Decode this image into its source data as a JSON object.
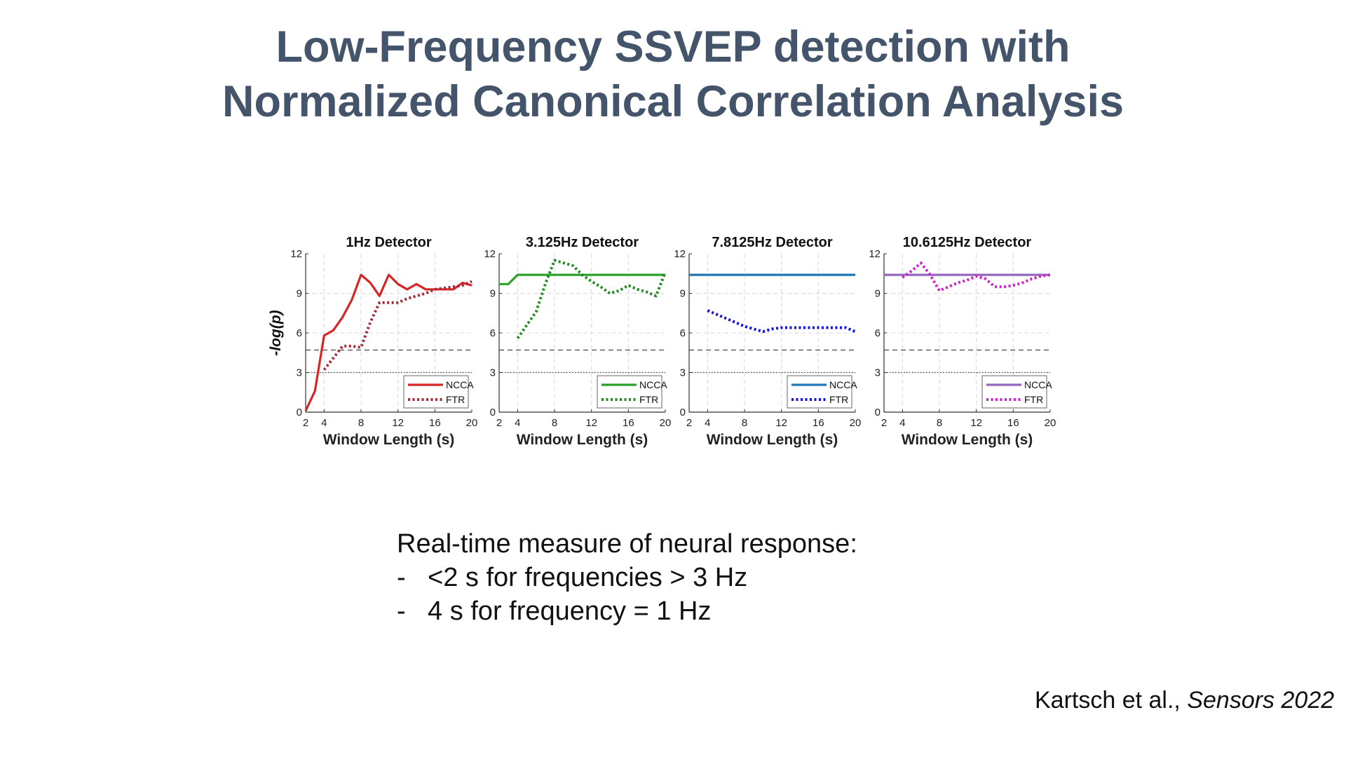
{
  "slide": {
    "title_line1": "Low-Frequency SSVEP detection with",
    "title_line2": "Normalized Canonical Correlation Analysis",
    "notes_heading": "Real-time measure of neural response:",
    "bullet_dash": "-",
    "bullets": [
      "<2 s for frequencies > 3 Hz",
      "4 s for frequency = 1 Hz"
    ],
    "citation_authors": "Kartsch et al., ",
    "citation_journal": "Sensors 2022"
  },
  "chart_data": [
    {
      "type": "line",
      "title": "1Hz Detector",
      "xlabel": "Window Length (s)",
      "ylabel": "-log(p)",
      "xlim": [
        2,
        20
      ],
      "ylim": [
        0,
        12
      ],
      "xticks": [
        2,
        4,
        8,
        12,
        16,
        20
      ],
      "yticks": [
        0,
        3,
        6,
        9,
        12
      ],
      "grid": true,
      "legend_position": "bottom-right",
      "color": "#d62728",
      "color_secondary": "#a52a3a",
      "reference_lines": [
        4.7,
        3.0
      ],
      "series": [
        {
          "name": "NCCA",
          "style": "solid",
          "x": [
            2,
            3,
            4,
            5,
            6,
            7,
            8,
            9,
            10,
            11,
            12,
            13,
            14,
            15,
            16,
            17,
            18,
            19,
            20
          ],
          "y": [
            0.1,
            1.6,
            5.8,
            6.2,
            7.2,
            8.5,
            10.4,
            9.8,
            8.8,
            10.4,
            9.7,
            9.3,
            9.7,
            9.3,
            9.3,
            9.3,
            9.3,
            9.8,
            9.6
          ]
        },
        {
          "name": "FTR",
          "style": "dotted",
          "x": [
            4,
            5,
            6,
            7,
            8,
            9,
            10,
            11,
            12,
            13,
            14,
            15,
            16,
            17,
            18,
            19,
            20
          ],
          "y": [
            3.2,
            4.1,
            5.0,
            5.0,
            4.9,
            6.8,
            8.3,
            8.3,
            8.3,
            8.6,
            8.8,
            9.0,
            9.3,
            9.4,
            9.5,
            9.6,
            9.9
          ]
        }
      ]
    },
    {
      "type": "line",
      "title": "3.125Hz Detector",
      "xlabel": "Window Length (s)",
      "ylabel": "",
      "xlim": [
        2,
        20
      ],
      "ylim": [
        0,
        12
      ],
      "xticks": [
        2,
        4,
        8,
        12,
        16,
        20
      ],
      "yticks": [
        0,
        3,
        6,
        9,
        12
      ],
      "grid": true,
      "legend_position": "bottom-right",
      "color": "#2ca02c",
      "color_secondary": "#1f8a1f",
      "reference_lines": [
        4.7,
        3.0
      ],
      "series": [
        {
          "name": "NCCA",
          "style": "solid",
          "x": [
            2,
            3,
            4,
            5,
            6,
            7,
            8,
            9,
            10,
            11,
            12,
            13,
            14,
            15,
            16,
            17,
            18,
            19,
            20
          ],
          "y": [
            9.7,
            9.7,
            10.4,
            10.4,
            10.4,
            10.4,
            10.4,
            10.4,
            10.4,
            10.4,
            10.4,
            10.4,
            10.4,
            10.4,
            10.4,
            10.4,
            10.4,
            10.4,
            10.4
          ]
        },
        {
          "name": "FTR",
          "style": "dotted",
          "x": [
            4,
            5,
            6,
            7,
            8,
            9,
            10,
            11,
            12,
            13,
            14,
            15,
            16,
            17,
            18,
            19,
            20
          ],
          "y": [
            5.6,
            6.6,
            7.6,
            9.7,
            11.5,
            11.3,
            11.1,
            10.4,
            9.9,
            9.5,
            9.0,
            9.2,
            9.6,
            9.3,
            9.1,
            8.8,
            10.6
          ]
        }
      ]
    },
    {
      "type": "line",
      "title": "7.8125Hz Detector",
      "xlabel": "Window Length (s)",
      "ylabel": "",
      "xlim": [
        2,
        20
      ],
      "ylim": [
        0,
        12
      ],
      "xticks": [
        2,
        4,
        8,
        12,
        16,
        20
      ],
      "yticks": [
        0,
        3,
        6,
        9,
        12
      ],
      "grid": true,
      "legend_position": "bottom-right",
      "color": "#1f77b4",
      "color_secondary": "#1010e0",
      "reference_lines": [
        4.7,
        3.0
      ],
      "series": [
        {
          "name": "NCCA",
          "style": "solid",
          "x": [
            2,
            20
          ],
          "y": [
            10.4,
            10.4
          ]
        },
        {
          "name": "FTR",
          "style": "dotted",
          "x": [
            4,
            5,
            6,
            7,
            8,
            9,
            10,
            11,
            12,
            13,
            14,
            15,
            16,
            17,
            18,
            19,
            20
          ],
          "y": [
            7.7,
            7.4,
            7.1,
            6.8,
            6.5,
            6.3,
            6.1,
            6.3,
            6.4,
            6.4,
            6.4,
            6.4,
            6.4,
            6.4,
            6.4,
            6.4,
            6.1
          ]
        }
      ]
    },
    {
      "type": "line",
      "title": "10.6125Hz Detector",
      "xlabel": "Window Length (s)",
      "ylabel": "",
      "xlim": [
        2,
        20
      ],
      "ylim": [
        0,
        12
      ],
      "xticks": [
        2,
        4,
        8,
        12,
        16,
        20
      ],
      "yticks": [
        0,
        3,
        6,
        9,
        12
      ],
      "grid": true,
      "legend_position": "bottom-right",
      "color": "#9467bd",
      "color_secondary": "#cc22cc",
      "reference_lines": [
        4.7,
        3.0
      ],
      "series": [
        {
          "name": "NCCA",
          "style": "solid",
          "x": [
            2,
            20
          ],
          "y": [
            10.4,
            10.4
          ]
        },
        {
          "name": "FTR",
          "style": "dotted",
          "x": [
            4,
            5,
            6,
            7,
            8,
            9,
            10,
            11,
            12,
            13,
            14,
            15,
            16,
            17,
            18,
            19,
            20
          ],
          "y": [
            10.2,
            10.7,
            11.3,
            10.4,
            9.2,
            9.5,
            9.8,
            10.0,
            10.3,
            10.1,
            9.5,
            9.5,
            9.6,
            9.8,
            10.1,
            10.3,
            10.4
          ]
        }
      ]
    }
  ]
}
